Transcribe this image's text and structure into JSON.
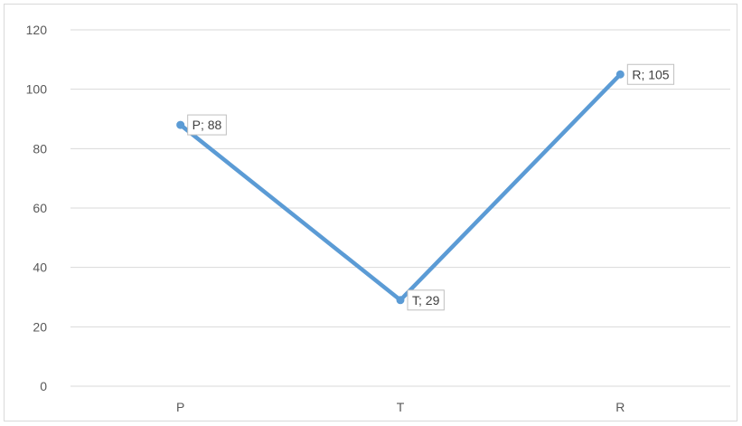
{
  "chart_data": {
    "type": "line",
    "categories": [
      "P",
      "T",
      "R"
    ],
    "series": [
      {
        "values": [
          88,
          29,
          105
        ]
      }
    ],
    "data_labels": [
      "P; 88",
      "T; 29",
      "R; 105"
    ],
    "ylim": [
      0,
      120
    ],
    "yticks": [
      0,
      20,
      40,
      60,
      80,
      100,
      120
    ],
    "grid": true,
    "legend": "none",
    "line_color": "#5b9bd5",
    "grid_color": "#d9d9d9",
    "text_color": "#595959"
  }
}
